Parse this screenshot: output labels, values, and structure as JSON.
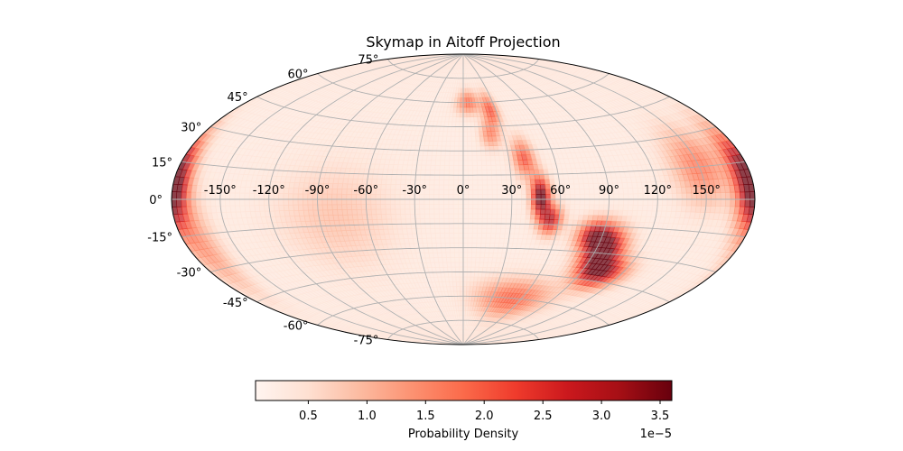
{
  "chart_data": {
    "type": "heatmap",
    "projection": "aitoff",
    "title": "Skymap in Aitoff Projection",
    "grid": true,
    "lon_ticks": [
      -150,
      -120,
      -90,
      -60,
      -30,
      0,
      30,
      60,
      90,
      120,
      150
    ],
    "lon_tick_labels": [
      "-150°",
      "-120°",
      "-90°",
      "-60°",
      "-30°",
      "0°",
      "30°",
      "60°",
      "90°",
      "120°",
      "150°"
    ],
    "lat_ticks": [
      -75,
      -60,
      -45,
      -30,
      -15,
      0,
      15,
      30,
      45,
      60,
      75
    ],
    "lat_tick_labels": [
      "-75°",
      "-60°",
      "-45°",
      "-30°",
      "-15°",
      "0°",
      "15°",
      "30°",
      "45°",
      "60°",
      "75°"
    ],
    "colormap": "Reds",
    "colors": {
      "low": "#fff5f0",
      "mid": "#fb6a4a",
      "high": "#67000d"
    },
    "colorbar": {
      "label": "Probability Density",
      "range": [
        5e-07,
        3.6e-05
      ],
      "tick_values": [
        0.5,
        1.0,
        1.5,
        2.0,
        2.5,
        3.0,
        3.5
      ],
      "tick_labels": [
        "0.5",
        "1.0",
        "1.5",
        "2.0",
        "2.5",
        "3.0",
        "3.5"
      ],
      "offset_text": "1e−5"
    },
    "hotspots": [
      {
        "lon": 48,
        "lat": 2,
        "density": 3.5,
        "sigma_lon": 4,
        "sigma_lat": 8
      },
      {
        "lon": 55,
        "lat": -12,
        "density": 2.6,
        "sigma_lon": 5,
        "sigma_lat": 6
      },
      {
        "lon": 95,
        "lat": -28,
        "density": 3.3,
        "sigma_lon": 9,
        "sigma_lat": 8
      },
      {
        "lon": 105,
        "lat": -40,
        "density": 2.9,
        "sigma_lon": 12,
        "sigma_lat": 6
      },
      {
        "lon": 85,
        "lat": -20,
        "density": 2.4,
        "sigma_lon": 8,
        "sigma_lat": 6
      },
      {
        "lon": 40,
        "lat": 25,
        "density": 1.8,
        "sigma_lon": 5,
        "sigma_lat": 8
      },
      {
        "lon": 25,
        "lat": 55,
        "density": 1.7,
        "sigma_lon": 5,
        "sigma_lat": 7
      },
      {
        "lon": 5,
        "lat": 60,
        "density": 1.5,
        "sigma_lon": 8,
        "sigma_lat": 5
      },
      {
        "lon": 20,
        "lat": 40,
        "density": 1.2,
        "sigma_lon": 5,
        "sigma_lat": 6
      },
      {
        "lon": -178,
        "lat": 5,
        "density": 2.8,
        "sigma_lon": 6,
        "sigma_lat": 12
      },
      {
        "lon": 175,
        "lat": 10,
        "density": 2.0,
        "sigma_lon": 6,
        "sigma_lat": 14
      },
      {
        "lon": 150,
        "lat": 15,
        "density": 1.4,
        "sigma_lon": 12,
        "sigma_lat": 12
      },
      {
        "lon": 50,
        "lat": -60,
        "density": 1.6,
        "sigma_lon": 25,
        "sigma_lat": 8
      },
      {
        "lon": -170,
        "lat": -20,
        "density": 1.0,
        "sigma_lon": 8,
        "sigma_lat": 15
      },
      {
        "lon": -80,
        "lat": -10,
        "density": 0.6,
        "sigma_lon": 25,
        "sigma_lat": 20
      }
    ],
    "background_density": 0.35
  }
}
